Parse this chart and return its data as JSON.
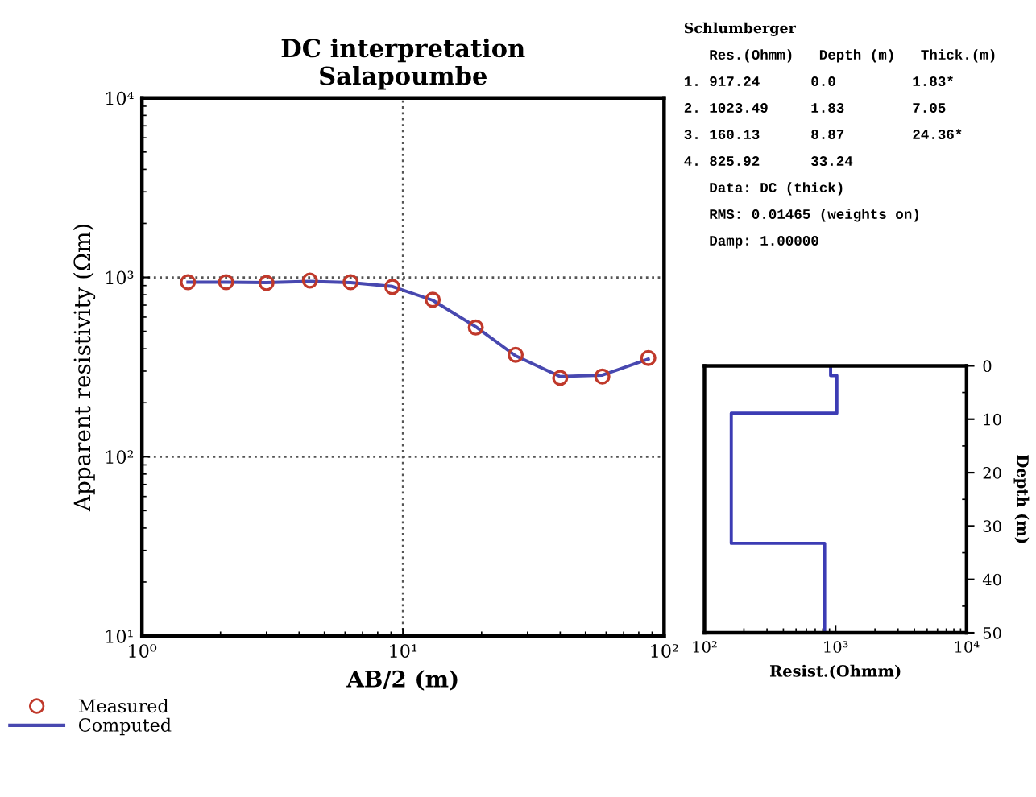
{
  "chart_data": [
    {
      "type": "line",
      "title": "DC interpretation\nSalapoumbe",
      "xlabel": "AB/2 (m)",
      "ylabel": "Apparent resistivity (Ωm)",
      "log": "xy",
      "grid": true,
      "legend": "bottom left",
      "xlim": [
        1,
        100
      ],
      "ylim": [
        10,
        10000
      ],
      "xticks": [
        {
          "value": 1,
          "label": "10⁰"
        },
        {
          "value": 10,
          "label": "10¹"
        },
        {
          "value": 100,
          "label": "10²"
        }
      ],
      "yticks": [
        {
          "value": 10,
          "label": "10¹"
        },
        {
          "value": 100,
          "label": "10²"
        },
        {
          "value": 1000,
          "label": "10³"
        },
        {
          "value": 10000,
          "label": "10⁴"
        }
      ],
      "x": [
        1.5,
        2.1,
        3.0,
        4.4,
        6.3,
        9.1,
        13,
        19,
        27,
        40,
        58,
        87
      ],
      "series": [
        {
          "name": "Measured",
          "type": "scatter",
          "marker": "circle",
          "color": "#c0392b",
          "values": [
            940,
            940,
            930,
            960,
            940,
            885,
            750,
            525,
            370,
            275,
            280,
            355
          ]
        },
        {
          "name": "Computed",
          "type": "line",
          "marker": "none",
          "color": "#4848b0",
          "values": [
            940,
            940,
            935,
            950,
            935,
            890,
            745,
            530,
            365,
            280,
            285,
            350
          ]
        }
      ]
    },
    {
      "type": "line",
      "xlabel": "Resist.(Ohmm)",
      "ylabel": "Depth (m)",
      "log": "x",
      "grid": false,
      "xlim": [
        100,
        10000
      ],
      "ylim": [
        50,
        0
      ],
      "xticks": [
        {
          "value": 100,
          "label": "10²"
        },
        {
          "value": 1000,
          "label": "10³"
        },
        {
          "value": 10000,
          "label": "10⁴"
        }
      ],
      "yticks": [
        0,
        10,
        20,
        30,
        40,
        50
      ],
      "series": [
        {
          "type": "line",
          "color": "#3c3cb4",
          "x": [
            917.24,
            917.24,
            1023.49,
            1023.49,
            160.13,
            160.13,
            825.92,
            825.92
          ],
          "values": [
            0,
            1.83,
            1.83,
            8.87,
            8.87,
            33.24,
            33.24,
            50
          ]
        }
      ]
    },
    {
      "type": "other",
      "annotations": [
        "Schlumberger",
        "   Res.(Ohmm)   Depth (m)   Thick.(m)",
        "1. 917.24      0.0         1.83*",
        "2. 1023.49     1.83        7.05",
        "3. 160.13      8.87        24.36*",
        "4. 825.92      33.24",
        "   Data: DC (thick)",
        "   RMS: 0.01465 (weights on)",
        "   Damp: 1.00000"
      ]
    }
  ]
}
